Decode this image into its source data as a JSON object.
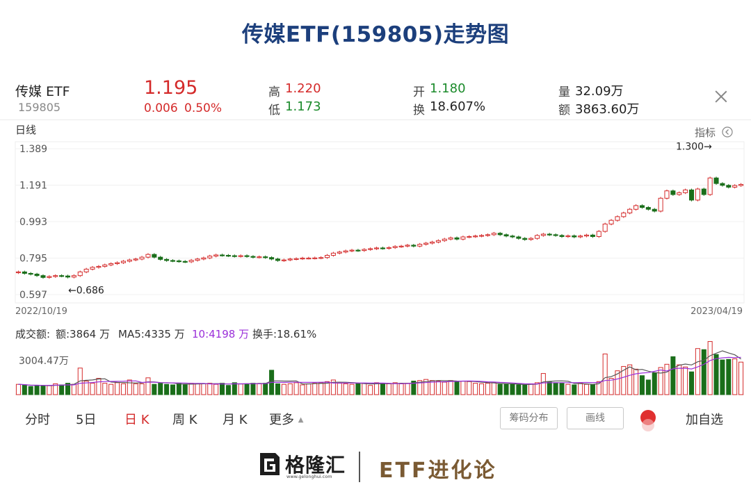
{
  "page_title": "传媒ETF(159805)走势图",
  "quote": {
    "name": "传媒 ETF",
    "code": "159805",
    "price": "1.195",
    "change": "0.006",
    "change_pct": "0.50%",
    "high_label": "高",
    "high": "1.220",
    "low_label": "低",
    "low": "1.173",
    "open_label": "开",
    "open": "1.180",
    "turnover_label": "换",
    "turnover": "18.607%",
    "volume_label": "量",
    "volume": "32.09万",
    "amount_label": "额",
    "amount": "3863.60万"
  },
  "chart_header": {
    "period_label": "日线",
    "indicator_label": "指标"
  },
  "volume_header": {
    "label": "成交额:",
    "amount": "额:3864 万",
    "ma5": "MA5:4335 万",
    "ma10": "10:4198 万",
    "turnover": "换手:18.61%",
    "axis_label": "3004.47万"
  },
  "tabs": [
    "分时",
    "5日",
    "日 K",
    "周 K",
    "月 K",
    "更多"
  ],
  "active_tab": "日 K",
  "buttons": {
    "chip": "筹码分布",
    "draw": "画线",
    "add": "加自选"
  },
  "footer": {
    "brand": "格隆汇",
    "brand_url": "www.gelonghui.com",
    "slogan": "ETF进化论"
  },
  "colors": {
    "title": "#1c3f7c",
    "up": "#d42a2a",
    "down": "#1a6e1a",
    "ma5": "#555555",
    "ma10": "#9b30d9"
  },
  "chart_data": {
    "type": "candlestick",
    "title": "",
    "x_start": "2022/10/19",
    "x_end": "2023/04/19",
    "y_ticks": [
      1.389,
      1.191,
      0.993,
      0.795,
      0.597
    ],
    "ylim": [
      0.597,
      1.389
    ],
    "annotations": [
      {
        "text": "←0.686",
        "value": 0.686,
        "kind": "low"
      },
      {
        "text": "1.300→",
        "value": 1.3,
        "kind": "high"
      }
    ],
    "closes": [
      0.72,
      0.712,
      0.708,
      0.7,
      0.69,
      0.695,
      0.7,
      0.698,
      0.692,
      0.7,
      0.72,
      0.735,
      0.745,
      0.75,
      0.758,
      0.765,
      0.77,
      0.778,
      0.785,
      0.79,
      0.8,
      0.815,
      0.8,
      0.788,
      0.782,
      0.78,
      0.777,
      0.775,
      0.783,
      0.79,
      0.796,
      0.806,
      0.812,
      0.81,
      0.808,
      0.805,
      0.808,
      0.804,
      0.8,
      0.802,
      0.798,
      0.79,
      0.782,
      0.785,
      0.79,
      0.792,
      0.795,
      0.795,
      0.796,
      0.798,
      0.81,
      0.822,
      0.828,
      0.834,
      0.838,
      0.836,
      0.842,
      0.846,
      0.85,
      0.848,
      0.852,
      0.858,
      0.86,
      0.865,
      0.86,
      0.87,
      0.876,
      0.882,
      0.89,
      0.898,
      0.905,
      0.898,
      0.91,
      0.912,
      0.915,
      0.918,
      0.922,
      0.93,
      0.922,
      0.915,
      0.91,
      0.902,
      0.896,
      0.902,
      0.918,
      0.925,
      0.922,
      0.918,
      0.912,
      0.916,
      0.91,
      0.915,
      0.92,
      0.912,
      0.94,
      0.98,
      1.0,
      1.02,
      1.04,
      1.06,
      1.08,
      1.07,
      1.06,
      1.05,
      1.12,
      1.16,
      1.14,
      1.15,
      1.165,
      1.11,
      1.17,
      1.14,
      1.23,
      1.2,
      1.19,
      1.18,
      1.189,
      1.195
    ],
    "volumes": [
      1900,
      1800,
      1500,
      1700,
      1600,
      1700,
      2000,
      1800,
      2100,
      1900,
      4900,
      2500,
      2100,
      3000,
      2100,
      1900,
      2200,
      2000,
      2700,
      2000,
      2000,
      3100,
      1900,
      2100,
      1900,
      1800,
      2100,
      1800,
      2100,
      2000,
      2000,
      2100,
      1900,
      2100,
      1700,
      2200,
      2000,
      2000,
      2100,
      2000,
      2100,
      4500,
      2000,
      1900,
      2000,
      2200,
      1800,
      2000,
      2100,
      2200,
      2400,
      2700,
      2100,
      2000,
      1900,
      2100,
      2100,
      1700,
      2200,
      2100,
      2000,
      2200,
      2000,
      2100,
      2500,
      2600,
      2800,
      2600,
      2500,
      2300,
      2600,
      2500,
      2500,
      2400,
      2100,
      2000,
      2100,
      2200,
      1900,
      1900,
      1900,
      1800,
      1800,
      2000,
      2200,
      3900,
      2300,
      2200,
      2100,
      1900,
      1800,
      2100,
      1900,
      1800,
      2400,
      7500,
      3000,
      4400,
      5200,
      5500,
      4700,
      3500,
      2700,
      4000,
      5000,
      5600,
      7000,
      5500,
      5100,
      4200,
      8500,
      8300,
      9800,
      7400,
      6400,
      6500,
      6600,
      6000
    ],
    "ma_volume_axis": 3004.47
  }
}
